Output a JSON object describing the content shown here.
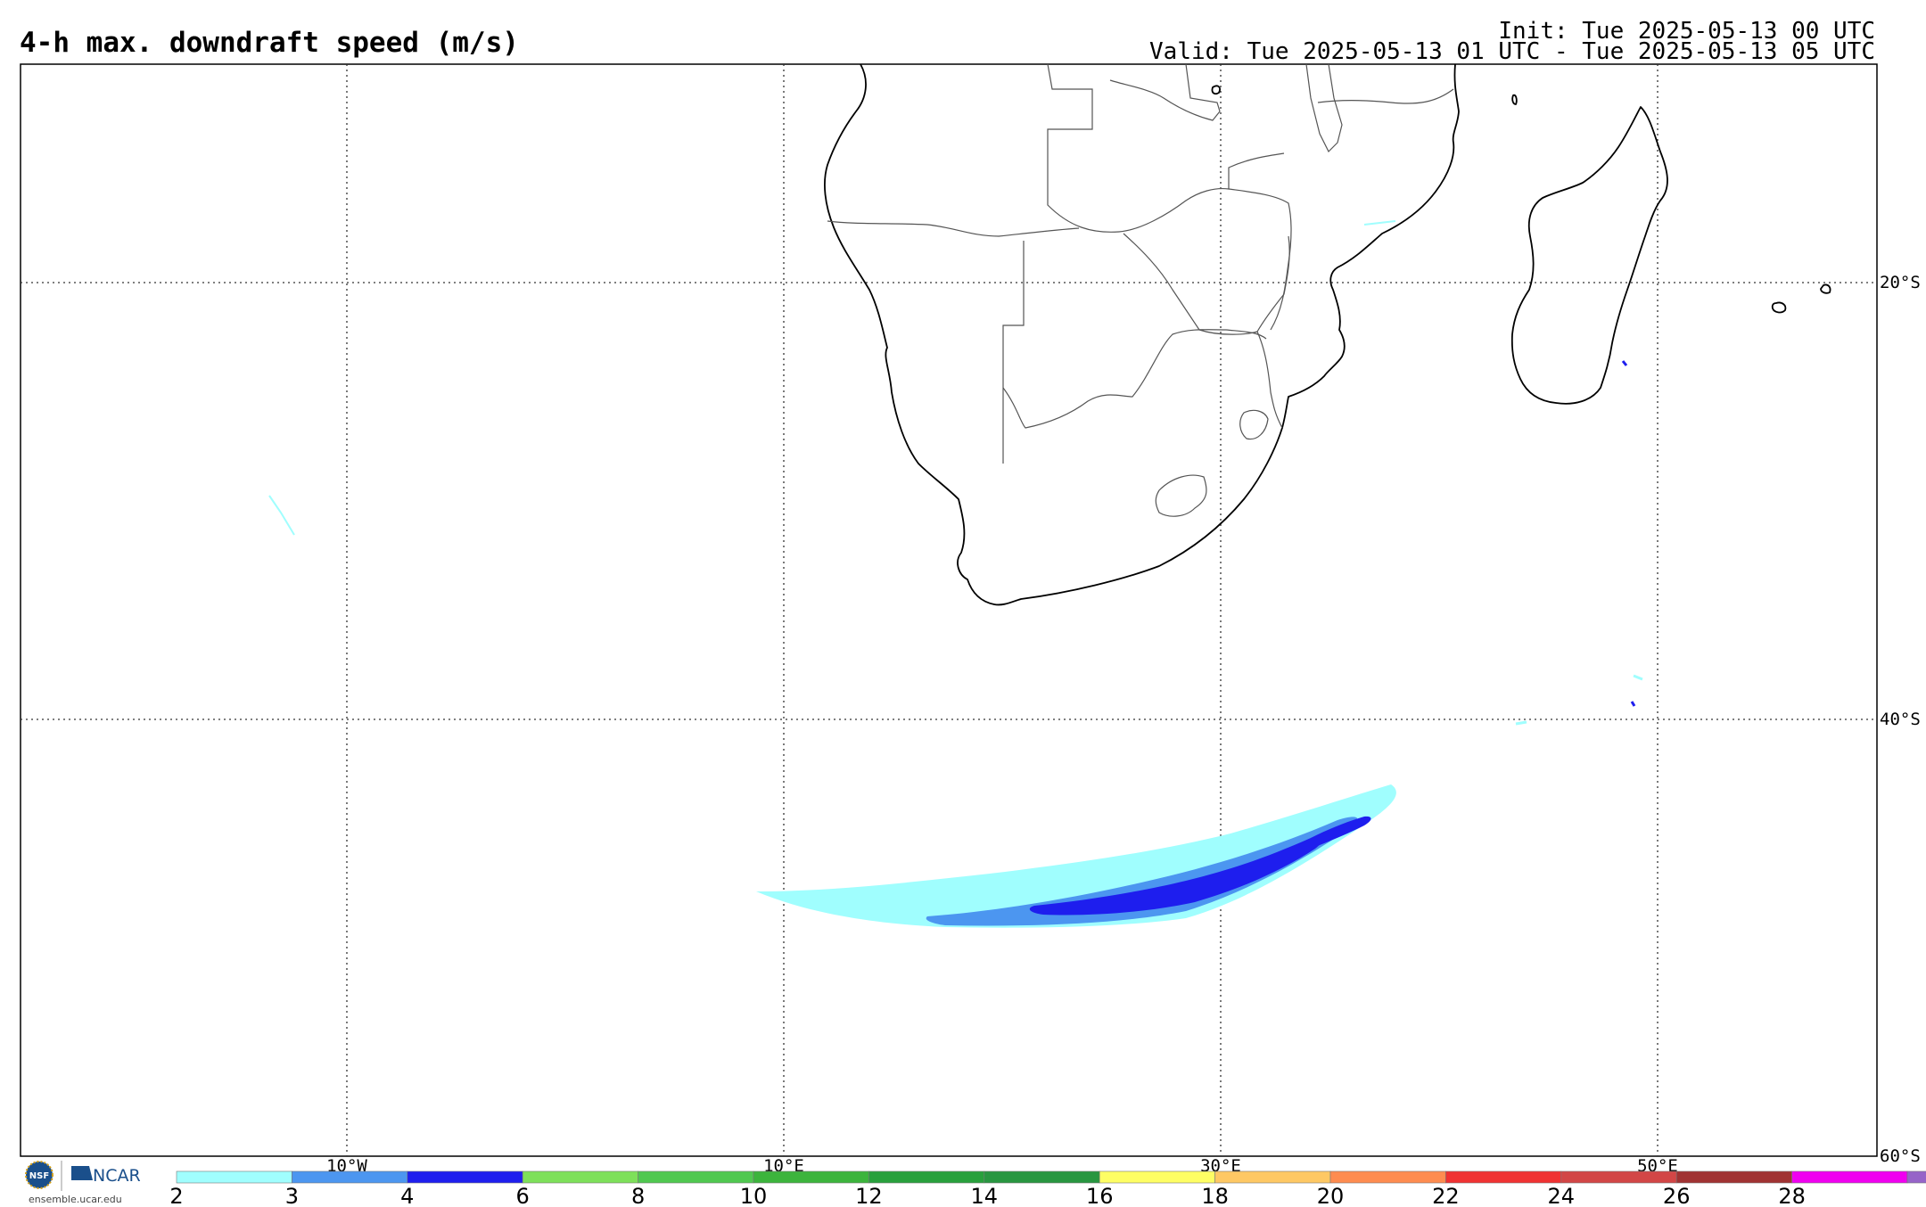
{
  "header": {
    "title": "4-h max. downdraft speed (m/s)",
    "init": "Init: Tue 2025-05-13 00 UTC",
    "valid": "Valid: Tue 2025-05-13 01 UTC - Tue 2025-05-13 05 UTC"
  },
  "map": {
    "lon_range": [
      -25,
      60
    ],
    "lat_range": [
      -60,
      -10
    ],
    "lat_labels": [
      {
        "lat": -20,
        "text": "20°S"
      },
      {
        "lat": -40,
        "text": "40°S"
      },
      {
        "lat": -60,
        "text": "60°S"
      }
    ],
    "lon_labels": [
      {
        "lon": -10,
        "text": "10°W"
      },
      {
        "lon": 10,
        "text": "10°E"
      },
      {
        "lon": 30,
        "text": "30°E"
      },
      {
        "lon": 50,
        "text": "50°E"
      }
    ],
    "grid_lons": [
      -10,
      10,
      30,
      50
    ],
    "grid_lats": [
      -20,
      -40
    ],
    "coast_color": "#000000",
    "border_color": "#555555"
  },
  "colorbar": {
    "labels": [
      "2",
      "3",
      "4",
      "6",
      "8",
      "10",
      "12",
      "14",
      "16",
      "18",
      "20",
      "22",
      "24",
      "26",
      "28"
    ],
    "colors": [
      "#a0fefe",
      "#4c96f0",
      "#1e1eee",
      "#7ee05a",
      "#50c850",
      "#3cb43c",
      "#28a03c",
      "#289640",
      "#fefe64",
      "#fec864",
      "#fe8c50",
      "#f03232",
      "#d24646",
      "#a03232",
      "#f000f0",
      "#9664c8"
    ]
  },
  "logo": {
    "nsf_text": "NSF",
    "ncar_text": "NCAR",
    "url": "ensemble.ucar.edu",
    "ncar_color": "#1a4f8b"
  }
}
